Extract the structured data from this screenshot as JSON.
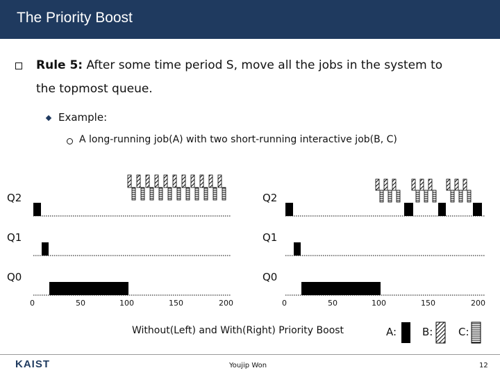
{
  "header": {
    "title": "The Priority Boost"
  },
  "bullets": {
    "rule_bold": "Rule 5:",
    "rule_text": " After some time period S, move all the jobs in the system to",
    "rule_cont": "the topmost queue.",
    "example": "Example:",
    "sub": "A long-running job(A) with two short-running interactive job(B, C)"
  },
  "diagram": {
    "queues": [
      "Q2",
      "Q1",
      "Q0"
    ],
    "ticks": [
      "0",
      "50",
      "100",
      "150",
      "200"
    ],
    "caption": "Without(Left) and With(Right) Priority Boost",
    "legend": [
      "A:",
      "B:",
      "C:"
    ]
  },
  "footer": {
    "logo": "KAIST",
    "author": "Youjip Won",
    "page": "12"
  }
}
